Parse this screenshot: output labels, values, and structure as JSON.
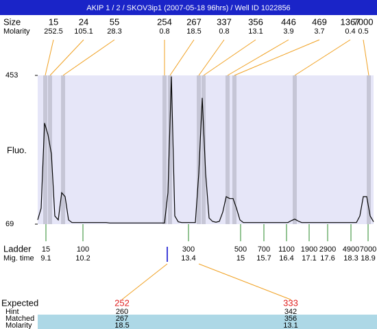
{
  "header": {
    "title": "AKIP 1 / 2 / SKOV3ip1 (2007-05-18 96hrs) / Well ID 1022856"
  },
  "peaks": {
    "size_label": "Size",
    "molarity_label": "Molarity",
    "items": [
      {
        "size": 15,
        "molarity": 252.5
      },
      {
        "size": 24,
        "molarity": 105.1
      },
      {
        "size": 55,
        "molarity": 28.3
      },
      {
        "size": 254,
        "molarity": 0.8
      },
      {
        "size": 267,
        "molarity": 18.5
      },
      {
        "size": 337,
        "molarity": 0.8
      },
      {
        "size": 356,
        "molarity": 13.1
      },
      {
        "size": 446,
        "molarity": 3.9
      },
      {
        "size": 469,
        "molarity": 3.7
      },
      {
        "size": 1367,
        "molarity": 0.4
      },
      {
        "size": 7000,
        "molarity": 0.5
      }
    ]
  },
  "plot": {
    "y_label": "Fluo.",
    "ylim": [
      69,
      453
    ],
    "yticks": [
      453,
      69
    ],
    "trace": [
      80,
      110,
      330,
      300,
      250,
      90,
      80,
      150,
      140,
      80,
      73,
      73,
      73,
      73,
      73,
      73,
      73,
      73,
      73,
      73,
      73,
      72,
      72,
      72,
      72,
      72,
      72,
      72,
      72,
      72,
      72,
      72,
      72,
      72,
      72,
      72,
      72,
      72,
      150,
      450,
      90,
      75,
      73,
      73,
      73,
      73,
      73,
      200,
      395,
      200,
      85,
      76,
      74,
      76,
      100,
      140,
      135,
      135,
      110,
      80,
      73,
      73,
      73,
      73,
      73,
      73,
      73,
      73,
      73,
      73,
      73,
      73,
      73,
      73,
      78,
      82,
      77,
      73,
      73,
      73,
      73,
      73,
      73,
      73,
      73,
      73,
      73,
      73,
      73,
      73,
      73,
      73,
      73,
      73,
      90,
      140,
      140,
      90,
      75
    ]
  },
  "ladder": {
    "label": "Ladder",
    "time_label": "Mig. time",
    "items": [
      {
        "size": 15,
        "time": 9.1
      },
      {
        "size": 100,
        "time": 10.2
      },
      {
        "size": 300,
        "time": 13.4
      },
      {
        "size": 500,
        "time": 15
      },
      {
        "size": 700,
        "time": 15.7
      },
      {
        "size": 1100,
        "time": 16.4
      },
      {
        "size": 1900,
        "time": 17.1
      },
      {
        "size": 2900,
        "time": 17.6
      },
      {
        "size": 4900,
        "time": 18.3
      },
      {
        "size": 7000,
        "time": 18.9
      }
    ]
  },
  "expected": {
    "row_labels": [
      "Expected",
      "Hint",
      "Matched",
      "Molarity"
    ],
    "columns": [
      {
        "expected": 252,
        "hint": 260,
        "matched": 267,
        "molarity": 18.5
      },
      {
        "expected": 333,
        "hint": 342,
        "matched": 356,
        "molarity": 13.1
      }
    ]
  }
}
